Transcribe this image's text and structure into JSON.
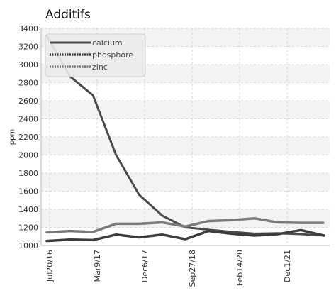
{
  "chart_data": {
    "type": "line",
    "title": "Additifs",
    "xlabel": "",
    "ylabel": "ppm",
    "x_labels": [
      "Jul20/16",
      "Mar9/17",
      "Dec6/17",
      "Sep27/18",
      "Feb14/20",
      "Dec1/21"
    ],
    "ylim": [
      1000,
      3400
    ],
    "yticks": [
      1000,
      1200,
      1400,
      1600,
      1800,
      2000,
      2200,
      2400,
      2600,
      2800,
      3000,
      3200,
      3400
    ],
    "grid": true,
    "legend_position": "top-left",
    "series": [
      {
        "name": "calcium",
        "color": "#4a4a4a",
        "style": "solid",
        "values": [
          3320,
          2870,
          2660,
          2000,
          1560,
          1330,
          1200,
          1175,
          1150,
          1130,
          1135,
          1125,
          1110
        ]
      },
      {
        "name": "phosphore",
        "color": "#3c3c3c",
        "style": "dotted",
        "values": [
          1050,
          1065,
          1060,
          1120,
          1090,
          1120,
          1070,
          1160,
          1130,
          1110,
          1125,
          1170,
          1110
        ]
      },
      {
        "name": "zinc",
        "color": "#7a7a7a",
        "style": "dotted",
        "values": [
          1145,
          1160,
          1150,
          1240,
          1240,
          1255,
          1210,
          1270,
          1280,
          1300,
          1255,
          1250,
          1250
        ]
      }
    ]
  }
}
